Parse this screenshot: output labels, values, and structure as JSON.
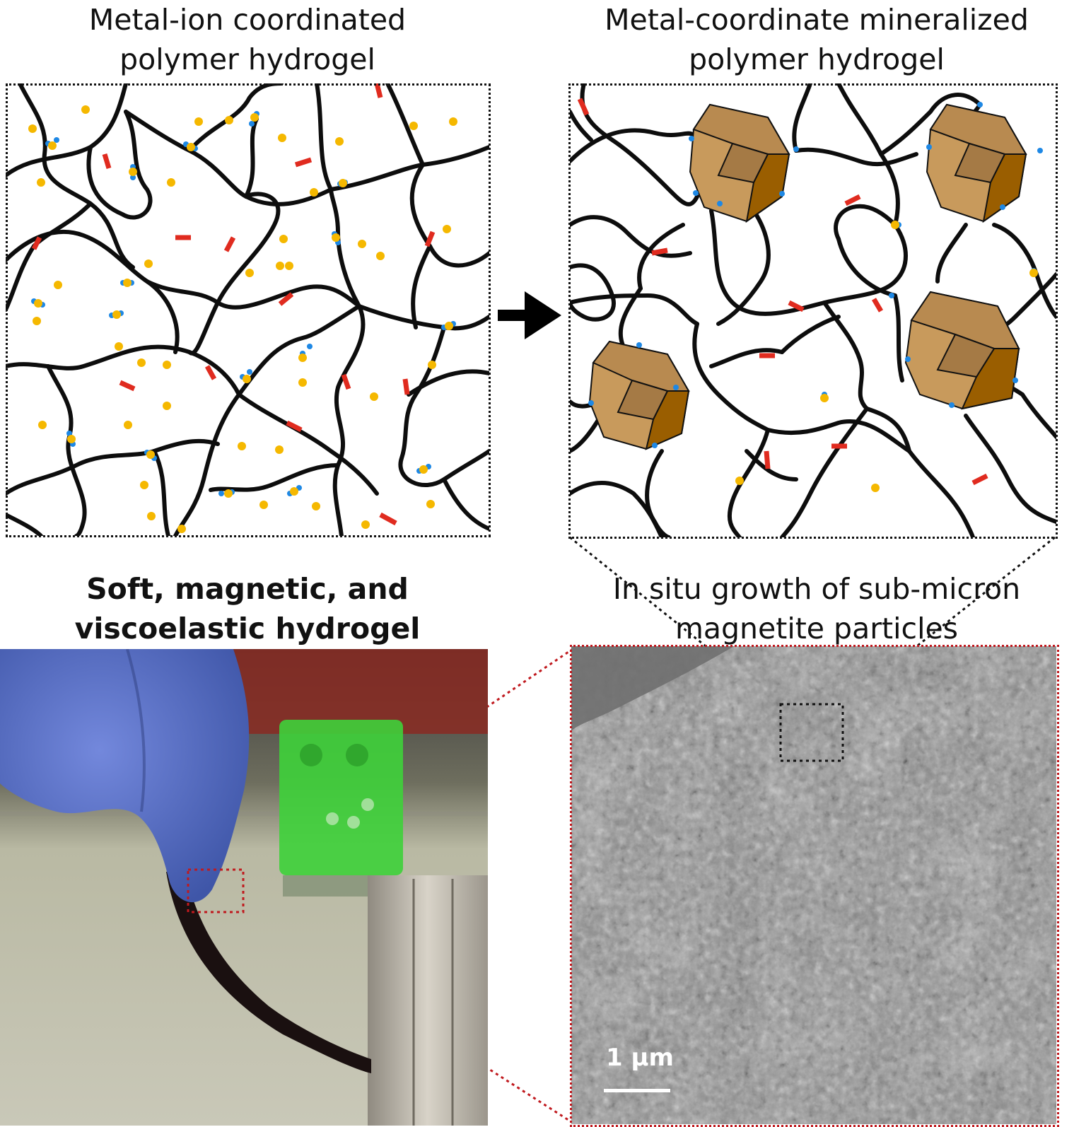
{
  "panels": {
    "top_left": {
      "title_line1": "Metal-ion coordinated",
      "title_line2": "polymer hydrogel"
    },
    "top_right": {
      "title_line1": "Metal-coordinate mineralized",
      "title_line2": "polymer hydrogel"
    },
    "bottom_left": {
      "title_line1": "Soft, magnetic, and",
      "title_line2": "viscoelastic hydrogel"
    },
    "bottom_right": {
      "title_line1": "In situ growth of sub-micron",
      "title_line2": "magnetite particles",
      "scale_bar_label": "1 µm"
    }
  },
  "colors": {
    "polymer_chain": "#0d0d0d",
    "metal_ion": "#f5b800",
    "coordination_site": "#1e88e5",
    "crosslink_segment": "#e02b1f",
    "magnetite_crystal": "#c89a5c",
    "zoom_outline_red": "#c0191e",
    "zoom_outline_black": "#111111",
    "glove": "#5b73c9",
    "magnet": "#b9b3a8",
    "sem_gray": "#8a8a8a"
  },
  "icons": {
    "arrow": "right-arrow-icon"
  }
}
